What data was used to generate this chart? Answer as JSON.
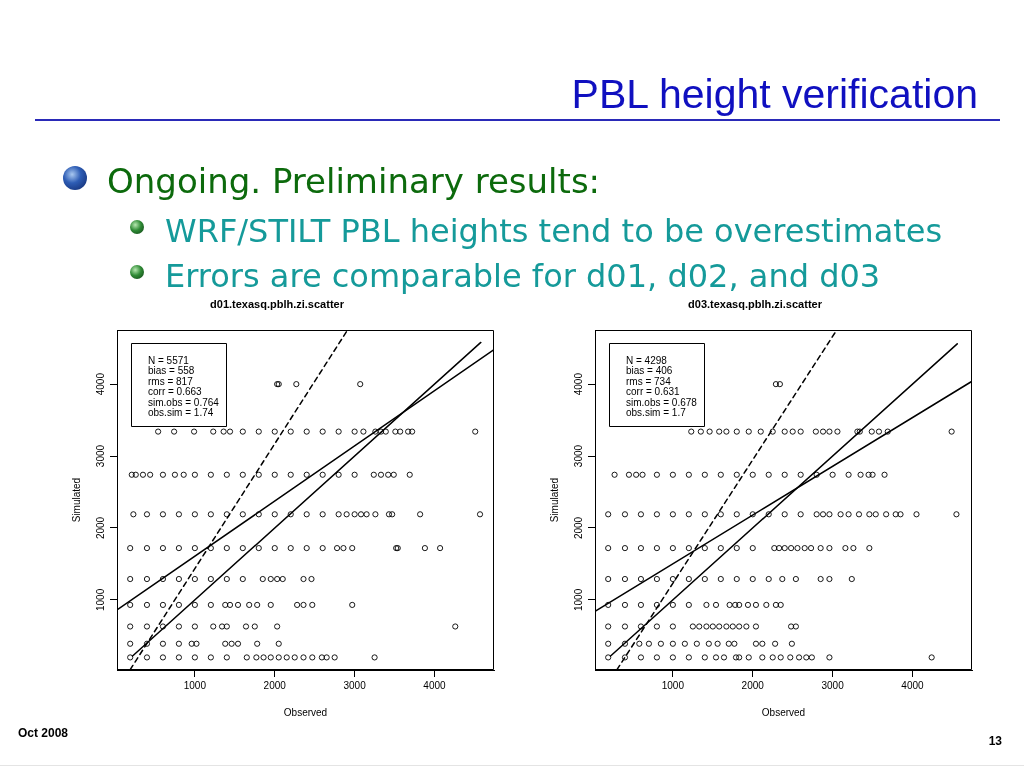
{
  "chart_data": [
    {
      "type": "other",
      "title": "PBL height verification",
      "annotations": [
        "Ongoing. Preliminary results:",
        "WRF/STILT PBL heights tend to be overestimates",
        "Errors are comparable for d01, d02, and d03",
        "Oct 2008",
        "13"
      ]
    },
    {
      "type": "scatter",
      "title": "d01.texasq.pblh.zi.scatter",
      "xlabel": "Observed",
      "ylabel": "Simulated",
      "xlim": [
        25,
        4745
      ],
      "ylim": [
        25,
        4750
      ],
      "xticks": [
        1000,
        2000,
        3000,
        4000
      ],
      "yticks": [
        1000,
        2000,
        3000,
        4000
      ],
      "marker": "circle",
      "line_style": "solid",
      "annotations": [
        "N = 5571",
        "bias = 558",
        "rms = 817",
        "corr = 0.663",
        "sim.obs = 0.764",
        "obs.sim = 1.74"
      ],
      "series": [
        {
          "color": "#000000",
          "x": [
            2030,
            2050,
            2270,
            3070,
            540,
            740,
            990,
            1230,
            1360,
            1440,
            1600,
            1800,
            2000,
            2200,
            2400,
            2600,
            2800,
            3000,
            3110,
            3260,
            3330,
            3390,
            3510,
            3570,
            3670,
            3720,
            4510,
            210,
            260,
            350,
            440,
            600,
            750,
            860,
            1000,
            1200,
            1400,
            1600,
            1800,
            2000,
            2200,
            2400,
            2600,
            2800,
            3000,
            3240,
            3330,
            3420,
            3490,
            3690,
            230,
            400,
            600,
            800,
            1000,
            1200,
            1400,
            1600,
            1800,
            2000,
            2200,
            2400,
            2600,
            2800,
            2900,
            3000,
            3080,
            3150,
            3260,
            3430,
            3470,
            3820,
            4570,
            190,
            400,
            600,
            800,
            1000,
            1200,
            1400,
            1600,
            1800,
            2000,
            2200,
            2400,
            2600,
            2780,
            2860,
            2970,
            3520,
            3540,
            3880,
            4070,
            190,
            400,
            600,
            800,
            1000,
            1200,
            1400,
            1600,
            1850,
            1950,
            2030,
            2100,
            2360,
            2460,
            190,
            400,
            600,
            800,
            1000,
            1200,
            1380,
            1440,
            1540,
            1680,
            1780,
            1950,
            2280,
            2360,
            2470,
            2970,
            190,
            400,
            600,
            800,
            1000,
            1230,
            1340,
            1400,
            1640,
            1750,
            2030,
            4260,
            190,
            400,
            600,
            800,
            960,
            1020,
            1380,
            1460,
            1540,
            1780,
            2050,
            190,
            400,
            600,
            800,
            1000,
            1200,
            1400,
            1650,
            1770,
            1860,
            1950,
            2050,
            2150,
            2250,
            2360,
            2470,
            2590,
            2650,
            2750,
            3250
          ],
          "values": [
            4000,
            4000,
            4000,
            4000,
            3340,
            3340,
            3340,
            3340,
            3340,
            3340,
            3340,
            3340,
            3340,
            3340,
            3340,
            3340,
            3340,
            3340,
            3340,
            3340,
            3340,
            3340,
            3340,
            3340,
            3340,
            3340,
            3340,
            2740,
            2740,
            2740,
            2740,
            2740,
            2740,
            2740,
            2740,
            2740,
            2740,
            2740,
            2740,
            2740,
            2740,
            2740,
            2740,
            2740,
            2740,
            2740,
            2740,
            2740,
            2740,
            2740,
            2190,
            2190,
            2190,
            2190,
            2190,
            2190,
            2190,
            2190,
            2190,
            2190,
            2190,
            2190,
            2190,
            2190,
            2190,
            2190,
            2190,
            2190,
            2190,
            2190,
            2190,
            2190,
            2190,
            1720,
            1720,
            1720,
            1720,
            1720,
            1720,
            1720,
            1720,
            1720,
            1720,
            1720,
            1720,
            1720,
            1720,
            1720,
            1720,
            1720,
            1720,
            1720,
            1720,
            1290,
            1290,
            1290,
            1290,
            1290,
            1290,
            1290,
            1290,
            1290,
            1290,
            1290,
            1290,
            1290,
            1290,
            930,
            930,
            930,
            930,
            930,
            930,
            930,
            930,
            930,
            930,
            930,
            930,
            930,
            930,
            930,
            930,
            630,
            630,
            630,
            630,
            630,
            630,
            630,
            630,
            630,
            630,
            630,
            630,
            390,
            390,
            390,
            390,
            390,
            390,
            390,
            390,
            390,
            390,
            390,
            200,
            200,
            200,
            200,
            200,
            200,
            200,
            200,
            200,
            200,
            200,
            200,
            200,
            200,
            200,
            200,
            200,
            200,
            200,
            200
          ]
        },
        {
          "type": "line",
          "color": "#000000",
          "marker": "none",
          "x": [
            220,
            4580
          ],
          "values": [
            220,
            4580
          ]
        },
        {
          "type": "line",
          "color": "#000000",
          "marker": "none",
          "x": [
            25,
            4745
          ],
          "values": [
            860,
            4480
          ]
        },
        {
          "type": "line",
          "color": "#000000",
          "marker": "none",
          "line_style": "dashed",
          "x": [
            190,
            2910
          ],
          "values": [
            30,
            4750
          ]
        }
      ]
    },
    {
      "type": "scatter",
      "title": "d03.texasq.pblh.zi.scatter",
      "xlabel": "Observed",
      "ylabel": "Simulated",
      "xlim": [
        25,
        4745
      ],
      "ylim": [
        25,
        4750
      ],
      "xticks": [
        1000,
        2000,
        3000,
        4000
      ],
      "yticks": [
        1000,
        2000,
        3000,
        4000
      ],
      "marker": "circle",
      "line_style": "solid",
      "annotations": [
        "N = 4298",
        "bias = 406",
        "rms = 734",
        "corr = 0.631",
        "sim.obs = 0.678",
        "obs.sim = 1.7"
      ],
      "series": [
        {
          "color": "#000000",
          "x": [
            2290,
            2340,
            1230,
            1350,
            1460,
            1580,
            1670,
            1800,
            1950,
            2100,
            2250,
            2400,
            2500,
            2600,
            2790,
            2880,
            2960,
            3060,
            3310,
            3340,
            3490,
            3580,
            3690,
            4490,
            270,
            450,
            540,
            620,
            800,
            1000,
            1200,
            1400,
            1600,
            1800,
            2000,
            2200,
            2400,
            2600,
            2800,
            3000,
            3200,
            3350,
            3450,
            3500,
            3650,
            190,
            400,
            600,
            800,
            1000,
            1200,
            1400,
            1600,
            1800,
            2000,
            2200,
            2400,
            2600,
            2800,
            2880,
            2960,
            3100,
            3200,
            3330,
            3460,
            3540,
            3670,
            3790,
            3850,
            4050,
            4550,
            190,
            400,
            600,
            800,
            1000,
            1200,
            1400,
            1600,
            1800,
            2000,
            2270,
            2330,
            2400,
            2480,
            2560,
            2650,
            2730,
            2850,
            2960,
            3160,
            3260,
            3460,
            190,
            400,
            600,
            800,
            1000,
            1200,
            1400,
            1600,
            1800,
            2000,
            2200,
            2370,
            2540,
            2850,
            2960,
            3240,
            190,
            400,
            600,
            800,
            1000,
            1200,
            1420,
            1540,
            1710,
            1780,
            1830,
            1940,
            2040,
            2170,
            2290,
            2350,
            190,
            400,
            600,
            800,
            1000,
            1250,
            1330,
            1420,
            1500,
            1580,
            1670,
            1750,
            1830,
            1920,
            2040,
            2480,
            2540,
            190,
            400,
            580,
            700,
            850,
            1000,
            1150,
            1300,
            1450,
            1560,
            1700,
            1770,
            2040,
            2120,
            2280,
            2490,
            190,
            400,
            600,
            800,
            1000,
            1200,
            1400,
            1540,
            1640,
            1790,
            1830,
            1950,
            2120,
            2250,
            2350,
            2470,
            2580,
            2670,
            2740,
            2960,
            4240
          ],
          "values": [
            4000,
            4000,
            3340,
            3340,
            3340,
            3340,
            3340,
            3340,
            3340,
            3340,
            3340,
            3340,
            3340,
            3340,
            3340,
            3340,
            3340,
            3340,
            3340,
            3340,
            3340,
            3340,
            3340,
            3340,
            2740,
            2740,
            2740,
            2740,
            2740,
            2740,
            2740,
            2740,
            2740,
            2740,
            2740,
            2740,
            2740,
            2740,
            2740,
            2740,
            2740,
            2740,
            2740,
            2740,
            2740,
            2190,
            2190,
            2190,
            2190,
            2190,
            2190,
            2190,
            2190,
            2190,
            2190,
            2190,
            2190,
            2190,
            2190,
            2190,
            2190,
            2190,
            2190,
            2190,
            2190,
            2190,
            2190,
            2190,
            2190,
            2190,
            2190,
            1720,
            1720,
            1720,
            1720,
            1720,
            1720,
            1720,
            1720,
            1720,
            1720,
            1720,
            1720,
            1720,
            1720,
            1720,
            1720,
            1720,
            1720,
            1720,
            1720,
            1720,
            1720,
            1290,
            1290,
            1290,
            1290,
            1290,
            1290,
            1290,
            1290,
            1290,
            1290,
            1290,
            1290,
            1290,
            1290,
            1290,
            1290,
            930,
            930,
            930,
            930,
            930,
            930,
            930,
            930,
            930,
            930,
            930,
            930,
            930,
            930,
            930,
            930,
            630,
            630,
            630,
            630,
            630,
            630,
            630,
            630,
            630,
            630,
            630,
            630,
            630,
            630,
            630,
            630,
            630,
            390,
            390,
            390,
            390,
            390,
            390,
            390,
            390,
            390,
            390,
            390,
            390,
            390,
            390,
            390,
            390,
            200,
            200,
            200,
            200,
            200,
            200,
            200,
            200,
            200,
            200,
            200,
            200,
            200,
            200,
            200,
            200,
            200,
            200,
            200,
            200,
            200
          ]
        },
        {
          "type": "line",
          "color": "#000000",
          "marker": "none",
          "x": [
            220,
            4560
          ],
          "values": [
            220,
            4560
          ]
        },
        {
          "type": "line",
          "color": "#000000",
          "marker": "none",
          "x": [
            25,
            4745
          ],
          "values": [
            840,
            4040
          ]
        },
        {
          "type": "line",
          "color": "#000000",
          "marker": "none",
          "line_style": "dashed",
          "x": [
            300,
            3050
          ],
          "values": [
            30,
            4750
          ]
        }
      ]
    }
  ]
}
